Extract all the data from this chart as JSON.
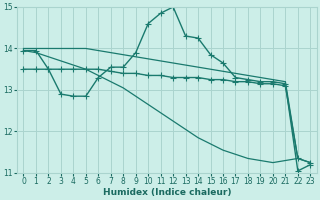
{
  "x_ticks": [
    0,
    1,
    2,
    3,
    4,
    5,
    6,
    7,
    8,
    9,
    10,
    11,
    12,
    13,
    14,
    15,
    16,
    17,
    18,
    19,
    20,
    21,
    22,
    23
  ],
  "line1_marked": {
    "x": [
      0,
      1,
      2,
      3,
      4,
      5,
      6,
      7,
      8,
      9,
      10,
      11,
      12,
      13,
      14,
      15,
      16,
      17,
      18,
      19,
      20,
      21,
      22,
      23
    ],
    "y": [
      13.95,
      13.95,
      13.5,
      12.9,
      12.85,
      12.85,
      13.3,
      13.55,
      13.55,
      13.9,
      14.6,
      14.85,
      15.0,
      14.3,
      14.25,
      13.85,
      13.65,
      13.3,
      13.25,
      13.2,
      13.2,
      13.15,
      11.05,
      11.2
    ]
  },
  "line2_marked": {
    "x": [
      0,
      1,
      2,
      3,
      4,
      5,
      6,
      7,
      8,
      9,
      10,
      11,
      12,
      13,
      14,
      15,
      16,
      17,
      18,
      19,
      20,
      21,
      22,
      23
    ],
    "y": [
      13.5,
      13.5,
      13.5,
      13.5,
      13.5,
      13.5,
      13.5,
      13.45,
      13.4,
      13.4,
      13.35,
      13.35,
      13.3,
      13.3,
      13.3,
      13.25,
      13.25,
      13.2,
      13.2,
      13.15,
      13.15,
      13.1,
      11.35,
      11.25
    ]
  },
  "line3_flat": {
    "x": [
      0,
      1,
      2,
      3,
      4,
      5,
      6,
      7,
      8,
      9,
      10,
      11,
      12,
      13,
      14,
      15,
      16,
      17,
      18,
      19,
      20,
      21,
      22,
      23
    ],
    "y": [
      14.0,
      14.0,
      14.0,
      14.0,
      14.0,
      14.0,
      13.95,
      13.9,
      13.85,
      13.8,
      13.75,
      13.7,
      13.65,
      13.6,
      13.55,
      13.5,
      13.45,
      13.4,
      13.35,
      13.3,
      13.25,
      13.2,
      11.35,
      11.25
    ]
  },
  "line4_diagonal": {
    "x": [
      0,
      1,
      2,
      3,
      4,
      5,
      6,
      7,
      8,
      9,
      10,
      11,
      12,
      13,
      14,
      15,
      16,
      17,
      18,
      19,
      20,
      21,
      22
    ],
    "y": [
      13.95,
      13.9,
      13.8,
      13.7,
      13.6,
      13.5,
      13.35,
      13.2,
      13.05,
      12.85,
      12.65,
      12.45,
      12.25,
      12.05,
      11.85,
      11.7,
      11.55,
      11.45,
      11.35,
      11.3,
      11.25,
      11.3,
      11.35
    ]
  },
  "color": "#1a7a6e",
  "background_color": "#cceee8",
  "grid_color": "#aad4ce",
  "xlabel": "Humidex (Indice chaleur)",
  "ylim": [
    11,
    15
  ],
  "xlim": [
    -0.5,
    23.5
  ],
  "yticks": [
    11,
    12,
    13,
    14,
    15
  ],
  "marker": "+",
  "marker_size": 4,
  "title_color": "#1a6a60"
}
